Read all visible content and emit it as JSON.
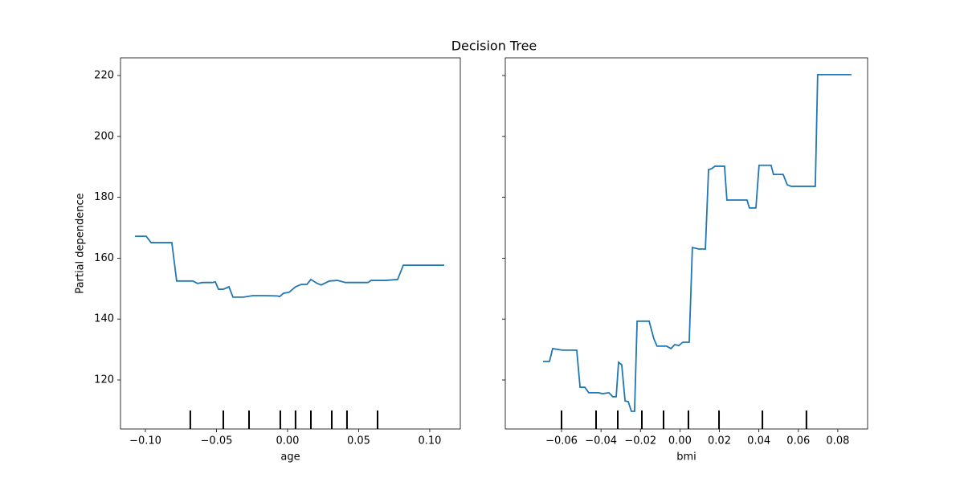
{
  "chart_data": [
    {
      "type": "line",
      "title": "Decision Tree",
      "xlabel": "age",
      "ylabel": "Partial dependence",
      "xlim": [
        -0.1175,
        0.1215
      ],
      "ylim": [
        103.9,
        225.8
      ],
      "xticks": [
        {
          "value": -0.1,
          "label": "−0.10"
        },
        {
          "value": -0.05,
          "label": "−0.05"
        },
        {
          "value": 0,
          "label": "0.00"
        },
        {
          "value": 0.05,
          "label": "0.05"
        },
        {
          "value": 0.1,
          "label": "0.10"
        }
      ],
      "yticks": [
        120,
        140,
        160,
        180,
        200,
        220
      ],
      "show_ytick_labels": true,
      "deciles": [
        -0.0684,
        -0.0452,
        -0.0271,
        -0.0051,
        0.0056,
        0.0164,
        0.0311,
        0.0418,
        0.0633
      ],
      "series": [
        {
          "color": "#1f77b4",
          "x": [
            -0.1073,
            -0.0994,
            -0.096,
            -0.0814,
            -0.078,
            -0.0667,
            -0.0633,
            -0.0599,
            -0.0531,
            -0.0508,
            -0.0486,
            -0.0452,
            -0.0412,
            -0.0384,
            -0.0311,
            -0.0243,
            -0.0158,
            -0.0073,
            -0.0056,
            -0.0028,
            0.0011,
            0.0056,
            0.0096,
            0.0136,
            0.0164,
            0.0209,
            0.0237,
            0.0294,
            0.035,
            0.0407,
            0.0463,
            0.0565,
            0.0588,
            0.0689,
            0.0774,
            0.0814,
            0.0915,
            0.1102
          ],
          "values": [
            167.2,
            167.2,
            165.1,
            165.1,
            152.5,
            152.5,
            151.7,
            152,
            152,
            152.2,
            149.8,
            149.8,
            150.6,
            147.2,
            147.2,
            147.7,
            147.7,
            147.6,
            147.4,
            148.5,
            148.8,
            150.6,
            151.4,
            151.4,
            153,
            151.7,
            151.2,
            152.5,
            152.7,
            152,
            152,
            152,
            152.7,
            152.7,
            153,
            157.7,
            157.7,
            157.7
          ]
        }
      ]
    },
    {
      "type": "line",
      "xlabel": "bmi",
      "xlim": [
        -0.0885,
        0.0951
      ],
      "ylim": [
        103.9,
        225.8
      ],
      "xticks": [
        {
          "value": -0.06,
          "label": "−0.06"
        },
        {
          "value": -0.04,
          "label": "−0.04"
        },
        {
          "value": -0.02,
          "label": "−0.02"
        },
        {
          "value": 0,
          "label": "0.00"
        },
        {
          "value": 0.02,
          "label": "0.02"
        },
        {
          "value": 0.04,
          "label": "0.04"
        },
        {
          "value": 0.06,
          "label": "0.06"
        },
        {
          "value": 0.08,
          "label": "0.08"
        }
      ],
      "yticks": [
        120,
        140,
        160,
        180,
        200,
        220
      ],
      "show_ytick_labels": false,
      "deciles": [
        -0.06,
        -0.0425,
        -0.0315,
        -0.0193,
        -0.0083,
        0.0043,
        0.0198,
        0.0418,
        0.0641
      ],
      "series": [
        {
          "color": "#1f77b4",
          "x": [
            -0.0694,
            -0.0661,
            -0.0645,
            -0.0596,
            -0.0523,
            -0.0506,
            -0.0482,
            -0.0462,
            -0.0413,
            -0.0392,
            -0.036,
            -0.034,
            -0.0323,
            -0.0311,
            -0.0295,
            -0.0278,
            -0.0262,
            -0.0246,
            -0.023,
            -0.0217,
            -0.0156,
            -0.0132,
            -0.0116,
            -0.0067,
            -0.0046,
            -0.0026,
            -0.0006,
            0.0015,
            0.0047,
            0.0063,
            0.0096,
            0.0129,
            0.0145,
            0.0161,
            0.0177,
            0.0226,
            0.0238,
            0.034,
            0.0352,
            0.0385,
            0.0401,
            0.0462,
            0.0474,
            0.0523,
            0.0544,
            0.0564,
            0.0686,
            0.0698,
            0.0869
          ],
          "values": [
            126.1,
            126.1,
            130.3,
            129.8,
            129.8,
            117.6,
            117.6,
            115.8,
            115.8,
            115.5,
            115.8,
            114.5,
            114.5,
            125.8,
            125,
            113.1,
            112.9,
            109.7,
            109.7,
            139.3,
            139.3,
            133.5,
            131.1,
            131.1,
            130.3,
            131.6,
            131.3,
            132.4,
            132.4,
            163.5,
            163,
            163,
            189.1,
            189.4,
            190.2,
            190.2,
            179.1,
            179.1,
            176.5,
            176.5,
            190.5,
            190.5,
            187.5,
            187.5,
            184.1,
            183.6,
            183.6,
            220.3,
            220.3
          ]
        }
      ]
    }
  ]
}
